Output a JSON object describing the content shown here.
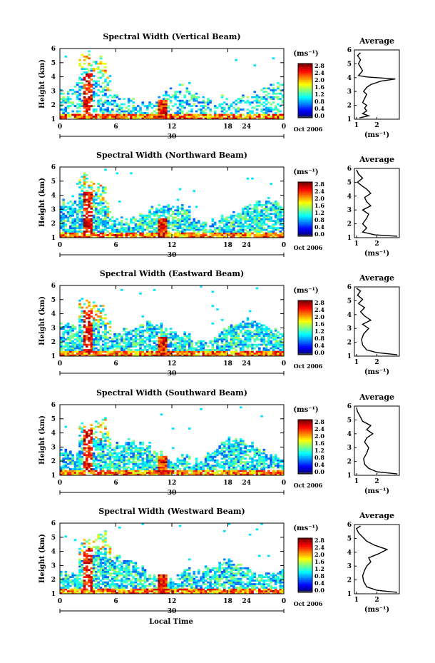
{
  "chart_data": [
    {
      "type": "heatmap",
      "title": "Spectral Width (Vertical Beam)",
      "ylabel": "Height (km)",
      "ylim": [
        1,
        6
      ],
      "xlim": [
        0,
        24
      ],
      "xticks": [
        "0",
        "6",
        "12",
        "18",
        "24",
        "0"
      ],
      "date_tick": "30",
      "date_label": "Oct 2006",
      "colorbar": {
        "unit": "(ms⁻¹)",
        "range": [
          0,
          3.0
        ],
        "ticks": [
          "2.8",
          "2.4",
          "2.0",
          "1.6",
          "1.2",
          "0.8",
          "0.4",
          "0.0"
        ]
      },
      "profile": {
        "title": "Average",
        "xlabel": "(ms⁻¹)",
        "xlim": [
          0.9,
          3.1
        ],
        "xticks": [
          "1",
          "2"
        ],
        "ylim": [
          1,
          6
        ],
        "points": [
          [
            1.15,
            1.1
          ],
          [
            1.6,
            1.25
          ],
          [
            1.3,
            1.4
          ],
          [
            1.5,
            1.6
          ],
          [
            1.4,
            1.8
          ],
          [
            1.5,
            2.0
          ],
          [
            1.3,
            2.2
          ],
          [
            1.4,
            2.5
          ],
          [
            1.5,
            2.8
          ],
          [
            1.35,
            3.0
          ],
          [
            1.5,
            3.3
          ],
          [
            1.7,
            3.5
          ],
          [
            2.2,
            3.75
          ],
          [
            2.9,
            3.9
          ],
          [
            1.5,
            4.05
          ],
          [
            1.1,
            4.15
          ],
          [
            1.3,
            4.5
          ],
          [
            1.1,
            5.0
          ],
          [
            1.2,
            5.3
          ],
          [
            1.05,
            5.6
          ],
          [
            1.2,
            5.8
          ]
        ]
      }
    },
    {
      "type": "heatmap",
      "title": "Spectral Width (Northward Beam)",
      "ylabel": "Height (km)",
      "ylim": [
        1,
        6
      ],
      "xlim": [
        0,
        24
      ],
      "xticks": [
        "0",
        "6",
        "12",
        "18",
        "24",
        "0"
      ],
      "date_tick": "30",
      "date_label": "Oct 2006",
      "colorbar": {
        "unit": "(ms⁻¹)",
        "range": [
          0,
          3.0
        ],
        "ticks": [
          "2.8",
          "2.4",
          "2.0",
          "1.6",
          "1.2",
          "0.8",
          "0.4",
          "0.0"
        ]
      },
      "profile": {
        "title": "Average",
        "xlabel": "(ms⁻¹)",
        "xlim": [
          0.9,
          3.1
        ],
        "xticks": [
          "1",
          "2"
        ],
        "ylim": [
          1,
          6
        ],
        "points": [
          [
            3.0,
            1.1
          ],
          [
            1.9,
            1.2
          ],
          [
            1.3,
            1.4
          ],
          [
            1.5,
            1.7
          ],
          [
            1.3,
            2.0
          ],
          [
            1.5,
            2.4
          ],
          [
            1.6,
            2.7
          ],
          [
            1.3,
            3.0
          ],
          [
            1.7,
            3.3
          ],
          [
            1.5,
            3.6
          ],
          [
            1.4,
            3.9
          ],
          [
            1.7,
            4.2
          ],
          [
            1.5,
            4.5
          ],
          [
            1.3,
            4.7
          ],
          [
            1.05,
            5.0
          ],
          [
            1.3,
            5.3
          ],
          [
            1.1,
            5.6
          ],
          [
            1.0,
            5.9
          ]
        ]
      }
    },
    {
      "type": "heatmap",
      "title": "Spectral Width (Eastward Beam)",
      "ylabel": "Height (km)",
      "ylim": [
        1,
        6
      ],
      "xlim": [
        0,
        24
      ],
      "xticks": [
        "0",
        "6",
        "12",
        "18",
        "24",
        "0"
      ],
      "date_tick": "30",
      "date_label": "Oct 2006",
      "colorbar": {
        "unit": "(ms⁻¹)",
        "range": [
          0,
          3.0
        ],
        "ticks": [
          "2.8",
          "2.4",
          "2.0",
          "1.6",
          "1.2",
          "0.8",
          "0.4",
          "0.0"
        ]
      },
      "profile": {
        "title": "Average",
        "xlabel": "(ms⁻¹)",
        "xlim": [
          0.9,
          3.1
        ],
        "xticks": [
          "1",
          "2"
        ],
        "ylim": [
          1,
          6
        ],
        "points": [
          [
            3.0,
            1.1
          ],
          [
            2.0,
            1.25
          ],
          [
            1.5,
            1.45
          ],
          [
            1.3,
            1.8
          ],
          [
            1.25,
            2.2
          ],
          [
            1.35,
            2.6
          ],
          [
            1.6,
            3.0
          ],
          [
            1.3,
            3.3
          ],
          [
            1.7,
            3.6
          ],
          [
            1.4,
            3.9
          ],
          [
            1.2,
            4.2
          ],
          [
            1.4,
            4.5
          ],
          [
            1.1,
            4.8
          ],
          [
            1.3,
            5.1
          ],
          [
            1.05,
            5.4
          ],
          [
            1.2,
            5.7
          ],
          [
            1.0,
            5.9
          ]
        ]
      }
    },
    {
      "type": "heatmap",
      "title": "Spectral Width (Southward Beam)",
      "ylabel": "Height (km)",
      "ylim": [
        1,
        6
      ],
      "xlim": [
        0,
        24
      ],
      "xticks": [
        "0",
        "6",
        "12",
        "18",
        "24",
        "0"
      ],
      "date_tick": "30",
      "date_label": "Oct 2006",
      "colorbar": {
        "unit": "(ms⁻¹)",
        "range": [
          0,
          3.0
        ],
        "ticks": [
          "2.8",
          "2.4",
          "2.0",
          "1.6",
          "1.2",
          "0.8",
          "0.4",
          "0.0"
        ]
      },
      "profile": {
        "title": "Average",
        "xlabel": "(ms⁻¹)",
        "xlim": [
          0.9,
          3.1
        ],
        "xticks": [
          "1",
          "2"
        ],
        "ylim": [
          1,
          6
        ],
        "points": [
          [
            3.0,
            1.1
          ],
          [
            2.0,
            1.25
          ],
          [
            1.6,
            1.5
          ],
          [
            1.4,
            1.8
          ],
          [
            1.35,
            2.2
          ],
          [
            1.5,
            2.6
          ],
          [
            1.6,
            3.0
          ],
          [
            1.4,
            3.4
          ],
          [
            1.5,
            3.7
          ],
          [
            1.8,
            4.0
          ],
          [
            1.5,
            4.3
          ],
          [
            1.7,
            4.6
          ],
          [
            1.3,
            4.9
          ],
          [
            1.2,
            5.2
          ],
          [
            1.05,
            5.6
          ],
          [
            1.0,
            5.9
          ]
        ]
      }
    },
    {
      "type": "heatmap",
      "title": "Spectral Width (Westward Beam)",
      "ylabel": "Height (km)",
      "xlabel": "Local Time",
      "ylim": [
        1,
        6
      ],
      "xlim": [
        0,
        24
      ],
      "xticks": [
        "0",
        "6",
        "12",
        "18",
        "24",
        "0"
      ],
      "date_tick": "30",
      "date_label": "Oct 2006",
      "colorbar": {
        "unit": "(ms⁻¹)",
        "range": [
          0,
          3.0
        ],
        "ticks": [
          "2.8",
          "2.4",
          "2.0",
          "1.6",
          "1.2",
          "0.8",
          "0.4",
          "0.0"
        ]
      },
      "profile": {
        "title": "Average",
        "xlabel": "(ms⁻¹)",
        "xlim": [
          0.9,
          3.1
        ],
        "xticks": [
          "1",
          "2"
        ],
        "ylim": [
          1,
          6
        ],
        "points": [
          [
            3.0,
            1.1
          ],
          [
            2.0,
            1.25
          ],
          [
            1.5,
            1.5
          ],
          [
            1.35,
            1.9
          ],
          [
            1.3,
            2.3
          ],
          [
            1.4,
            2.7
          ],
          [
            1.5,
            3.0
          ],
          [
            1.7,
            3.3
          ],
          [
            1.6,
            3.6
          ],
          [
            2.1,
            3.9
          ],
          [
            2.5,
            4.2
          ],
          [
            1.9,
            4.5
          ],
          [
            1.5,
            4.8
          ],
          [
            1.3,
            5.1
          ],
          [
            1.1,
            5.4
          ],
          [
            1.0,
            5.7
          ],
          [
            1.2,
            5.9
          ]
        ]
      }
    }
  ]
}
